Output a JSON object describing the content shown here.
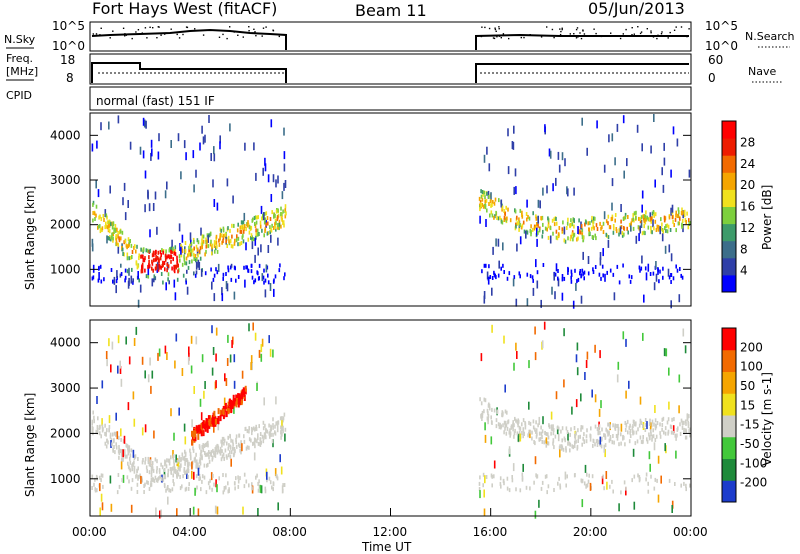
{
  "header": {
    "title": "Fort Hays West (fitACF)",
    "beam": "Beam 11",
    "date": "05/Jun/2013"
  },
  "noise_panel": {
    "left_label": "N.Sky",
    "left_ticks": [
      "10^5",
      "10^0"
    ],
    "right_ticks": [
      "10^5",
      "10^0"
    ],
    "right_label": "N.Search"
  },
  "freq_panel": {
    "left_label_line1": "Freq.",
    "left_label_line2": "[MHz]",
    "left_ticks": [
      "18",
      "8"
    ],
    "right_ticks": [
      "60",
      "0"
    ],
    "right_label": "Nave"
  },
  "cpid_panel": {
    "left_label": "CPID",
    "mode_text": "normal (fast) 151 IF"
  },
  "x_axis": {
    "ticks": [
      "00:00",
      "04:00",
      "08:00",
      "12:00",
      "16:00",
      "20:00",
      "00:00"
    ],
    "label": "Time UT"
  },
  "chart_data": [
    {
      "type": "heatmap",
      "name": "power",
      "xlabel": "Time UT",
      "ylabel": "Slant Range [km]",
      "x_range_hours": [
        0,
        24
      ],
      "ylim": [
        180,
        4500
      ],
      "yticks": [
        "1000",
        "2000",
        "3000",
        "4000"
      ],
      "data_gaps_hours": [
        [
          7.85,
          15.4
        ]
      ],
      "colorbar": {
        "label": "Power [dB]",
        "tick_labels": [
          "28",
          "24",
          "20",
          "16",
          "12",
          "8",
          "4"
        ],
        "colors": [
          "#0000ff",
          "#2f3fa8",
          "#3c6e8a",
          "#3d9b6a",
          "#7dcf3d",
          "#f0e11e",
          "#f5a500",
          "#f26a00",
          "#ee1c00",
          "#ff0000"
        ]
      }
    },
    {
      "type": "heatmap",
      "name": "velocity",
      "xlabel": "Time UT",
      "ylabel": "Slant Range [km]",
      "x_range_hours": [
        0,
        24
      ],
      "ylim": [
        180,
        4500
      ],
      "yticks": [
        "1000",
        "2000",
        "3000",
        "4000"
      ],
      "data_gaps_hours": [
        [
          7.85,
          15.4
        ]
      ],
      "colorbar": {
        "label": "Velocity [m s-1]",
        "tick_labels": [
          "200",
          "100",
          "50",
          "15",
          "-15",
          "-50",
          "-100",
          "-200"
        ],
        "colors": [
          "#1c3ccc",
          "#1e8a3a",
          "#42c83a",
          "#cfcfc7",
          "#f0e11e",
          "#f5a500",
          "#f26a00",
          "#ff0000"
        ]
      }
    }
  ]
}
